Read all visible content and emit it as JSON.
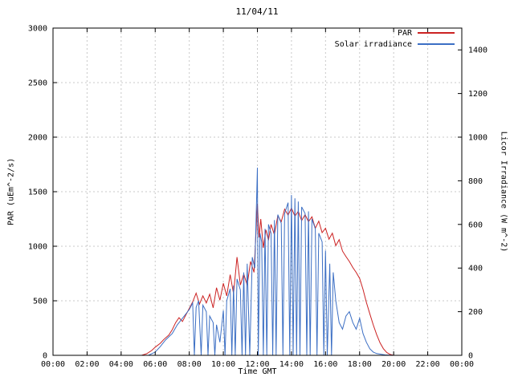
{
  "chart_data": {
    "type": "line",
    "title": "11/04/11",
    "xlabel": "Time GMT",
    "ylabel": "PAR (uEm^-2/s)",
    "y2label": "Licor Irradiance (W m^-2)",
    "xlim": [
      0,
      24
    ],
    "ylim": [
      0,
      3000
    ],
    "y2lim": [
      0,
      1500
    ],
    "grid": true,
    "legend_position": "top-right",
    "colors": {
      "grid": "#c8c8c8",
      "axis": "#000000",
      "background": "#ffffff"
    },
    "yticks": [
      0,
      500,
      1000,
      1500,
      2000,
      2500,
      3000
    ],
    "y2ticks": [
      0,
      200,
      400,
      600,
      800,
      1000,
      1200,
      1400
    ],
    "xticks": [
      {
        "h": 0,
        "label": "00:00"
      },
      {
        "h": 2,
        "label": "02:00"
      },
      {
        "h": 4,
        "label": "04:00"
      },
      {
        "h": 6,
        "label": "06:00"
      },
      {
        "h": 8,
        "label": "08:00"
      },
      {
        "h": 10,
        "label": "10:00"
      },
      {
        "h": 12,
        "label": "12:00"
      },
      {
        "h": 14,
        "label": "14:00"
      },
      {
        "h": 16,
        "label": "16:00"
      },
      {
        "h": 18,
        "label": "18:00"
      },
      {
        "h": 20,
        "label": "20:00"
      },
      {
        "h": 22,
        "label": "22:00"
      },
      {
        "h": 24,
        "label": "00:00"
      }
    ],
    "series": [
      {
        "name": "PAR",
        "color": "#cc2222",
        "axis": "left",
        "unit": "uEm^-2/s",
        "points": [
          [
            0,
            0
          ],
          [
            5.2,
            0
          ],
          [
            5.5,
            15
          ],
          [
            5.8,
            45
          ],
          [
            6,
            75
          ],
          [
            6.3,
            110
          ],
          [
            6.5,
            145
          ],
          [
            6.8,
            185
          ],
          [
            7,
            235
          ],
          [
            7.2,
            300
          ],
          [
            7.4,
            345
          ],
          [
            7.6,
            310
          ],
          [
            7.8,
            370
          ],
          [
            8,
            430
          ],
          [
            8.2,
            490
          ],
          [
            8.4,
            570
          ],
          [
            8.6,
            470
          ],
          [
            8.8,
            545
          ],
          [
            9,
            480
          ],
          [
            9.2,
            560
          ],
          [
            9.4,
            435
          ],
          [
            9.6,
            620
          ],
          [
            9.8,
            505
          ],
          [
            10,
            660
          ],
          [
            10.2,
            545
          ],
          [
            10.4,
            740
          ],
          [
            10.6,
            565
          ],
          [
            10.8,
            900
          ],
          [
            11,
            645
          ],
          [
            11.2,
            745
          ],
          [
            11.4,
            645
          ],
          [
            11.6,
            860
          ],
          [
            11.8,
            760
          ],
          [
            12,
            1390
          ],
          [
            12.1,
            1080
          ],
          [
            12.2,
            1250
          ],
          [
            12.35,
            985
          ],
          [
            12.5,
            1150
          ],
          [
            12.65,
            1055
          ],
          [
            12.8,
            1200
          ],
          [
            13,
            1105
          ],
          [
            13.2,
            1280
          ],
          [
            13.4,
            1225
          ],
          [
            13.6,
            1340
          ],
          [
            13.8,
            1285
          ],
          [
            14,
            1350
          ],
          [
            14.2,
            1275
          ],
          [
            14.4,
            1320
          ],
          [
            14.6,
            1235
          ],
          [
            14.8,
            1290
          ],
          [
            15,
            1225
          ],
          [
            15.2,
            1270
          ],
          [
            15.4,
            1165
          ],
          [
            15.6,
            1230
          ],
          [
            15.8,
            1125
          ],
          [
            16,
            1165
          ],
          [
            16.2,
            1065
          ],
          [
            16.4,
            1120
          ],
          [
            16.6,
            1005
          ],
          [
            16.8,
            1060
          ],
          [
            17,
            955
          ],
          [
            17.2,
            905
          ],
          [
            17.4,
            860
          ],
          [
            17.6,
            805
          ],
          [
            17.8,
            760
          ],
          [
            18,
            705
          ],
          [
            18.2,
            605
          ],
          [
            18.4,
            485
          ],
          [
            18.6,
            380
          ],
          [
            18.8,
            280
          ],
          [
            19,
            190
          ],
          [
            19.2,
            115
          ],
          [
            19.4,
            60
          ],
          [
            19.6,
            25
          ],
          [
            19.8,
            8
          ],
          [
            20,
            0
          ],
          [
            24,
            0
          ]
        ]
      },
      {
        "name": "Solar irradiance",
        "color": "#3c6fc4",
        "axis": "right",
        "unit": "W m^-2",
        "points": [
          [
            0,
            0
          ],
          [
            5.6,
            0
          ],
          [
            6,
            15
          ],
          [
            6.3,
            40
          ],
          [
            6.6,
            70
          ],
          [
            7,
            100
          ],
          [
            7.3,
            140
          ],
          [
            7.6,
            170
          ],
          [
            8,
            210
          ],
          [
            8.2,
            240
          ],
          [
            8.3,
            0
          ],
          [
            8.4,
            220
          ],
          [
            8.55,
            250
          ],
          [
            8.7,
            0
          ],
          [
            8.8,
            230
          ],
          [
            9,
            200
          ],
          [
            9.1,
            0
          ],
          [
            9.2,
            180
          ],
          [
            9.4,
            150
          ],
          [
            9.5,
            0
          ],
          [
            9.6,
            140
          ],
          [
            9.8,
            60
          ],
          [
            10,
            205
          ],
          [
            10.1,
            0
          ],
          [
            10.2,
            250
          ],
          [
            10.4,
            305
          ],
          [
            10.5,
            0
          ],
          [
            10.6,
            320
          ],
          [
            10.7,
            0
          ],
          [
            10.8,
            350
          ],
          [
            11,
            300
          ],
          [
            11.1,
            0
          ],
          [
            11.2,
            380
          ],
          [
            11.3,
            0
          ],
          [
            11.4,
            420
          ],
          [
            11.55,
            0
          ],
          [
            11.7,
            450
          ],
          [
            11.85,
            400
          ],
          [
            12,
            860
          ],
          [
            12.05,
            0
          ],
          [
            12.15,
            560
          ],
          [
            12.25,
            520
          ],
          [
            12.35,
            0
          ],
          [
            12.45,
            580
          ],
          [
            12.55,
            0
          ],
          [
            12.65,
            600
          ],
          [
            12.8,
            560
          ],
          [
            12.9,
            0
          ],
          [
            13,
            620
          ],
          [
            13.1,
            0
          ],
          [
            13.2,
            645
          ],
          [
            13.4,
            605
          ],
          [
            13.5,
            0
          ],
          [
            13.6,
            650
          ],
          [
            13.8,
            700
          ],
          [
            13.9,
            0
          ],
          [
            14,
            735
          ],
          [
            14.1,
            0
          ],
          [
            14.2,
            720
          ],
          [
            14.3,
            0
          ],
          [
            14.4,
            705
          ],
          [
            14.5,
            0
          ],
          [
            14.6,
            680
          ],
          [
            14.8,
            650
          ],
          [
            14.9,
            0
          ],
          [
            15,
            660
          ],
          [
            15.1,
            0
          ],
          [
            15.2,
            625
          ],
          [
            15.4,
            580
          ],
          [
            15.5,
            0
          ],
          [
            15.6,
            560
          ],
          [
            15.8,
            520
          ],
          [
            15.9,
            0
          ],
          [
            16,
            480
          ],
          [
            16.1,
            0
          ],
          [
            16.25,
            420
          ],
          [
            16.35,
            0
          ],
          [
            16.45,
            380
          ],
          [
            16.6,
            250
          ],
          [
            16.8,
            150
          ],
          [
            17,
            120
          ],
          [
            17.2,
            180
          ],
          [
            17.4,
            200
          ],
          [
            17.6,
            150
          ],
          [
            17.8,
            120
          ],
          [
            18,
            170
          ],
          [
            18.2,
            100
          ],
          [
            18.4,
            60
          ],
          [
            18.6,
            30
          ],
          [
            18.8,
            15
          ],
          [
            19,
            8
          ],
          [
            19.5,
            2
          ],
          [
            20,
            0
          ],
          [
            24,
            0
          ]
        ]
      }
    ]
  }
}
